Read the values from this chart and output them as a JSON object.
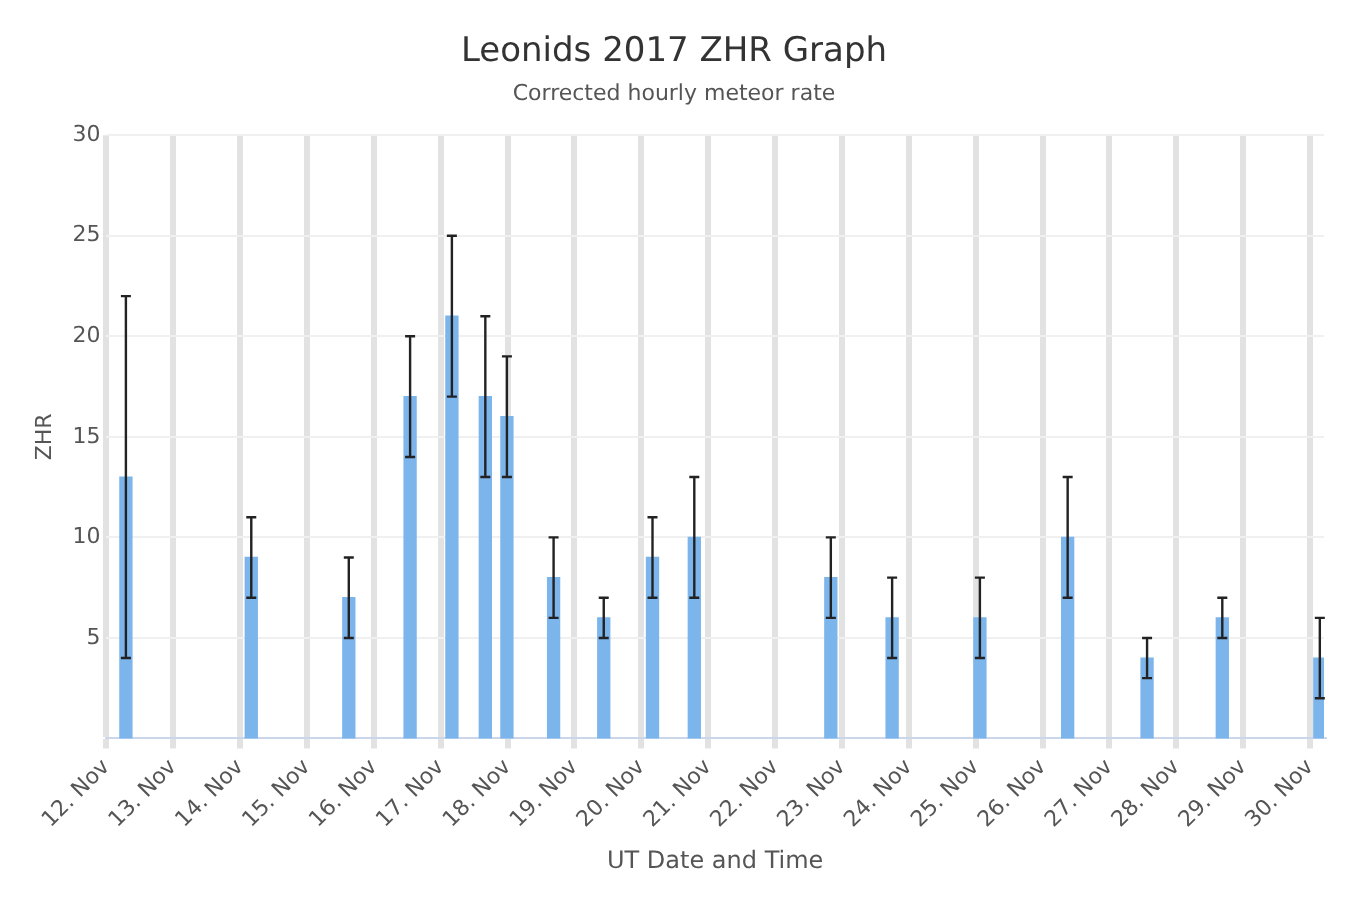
{
  "chart_data": {
    "type": "bar",
    "title": "Leonids 2017 ZHR Graph",
    "subtitle": "Corrected hourly meteor rate",
    "xlabel": "UT Date and Time",
    "ylabel": "ZHR",
    "x": [
      "2017-11-12T07:00",
      "2017-11-14T04:00",
      "2017-11-15T15:00",
      "2017-11-16T13:00",
      "2017-11-17T04:00",
      "2017-11-17T16:00",
      "2017-11-17T23:45",
      "2017-11-18T16:30",
      "2017-11-19T10:30",
      "2017-11-20T04:00",
      "2017-11-20T19:00",
      "2017-11-22T20:00",
      "2017-11-23T18:00",
      "2017-11-25T01:30",
      "2017-11-26T09:00",
      "2017-11-27T13:30",
      "2017-11-28T16:30",
      "2017-11-30T03:30"
    ],
    "values": [
      13,
      9,
      7,
      17,
      21,
      17,
      16,
      8,
      6,
      9,
      10,
      8,
      6,
      6,
      10,
      4,
      6,
      4
    ],
    "errors": [
      [
        4,
        22
      ],
      [
        7,
        11
      ],
      [
        5,
        9
      ],
      [
        14,
        20
      ],
      [
        17,
        25
      ],
      [
        13,
        21
      ],
      [
        13,
        19
      ],
      [
        6,
        10
      ],
      [
        5,
        7
      ],
      [
        7,
        11
      ],
      [
        7,
        13
      ],
      [
        6,
        10
      ],
      [
        4,
        8
      ],
      [
        4,
        8
      ],
      [
        7,
        13
      ],
      [
        3,
        5
      ],
      [
        5,
        7
      ],
      [
        2,
        6
      ]
    ],
    "color": "#7cb5ec",
    "xlim": [
      "2017-11-12",
      "2017-11-30T05:00"
    ],
    "xticks": [
      {
        "value": "2017-11-12",
        "label": "12. Nov"
      },
      {
        "value": "2017-11-13",
        "label": "13. Nov"
      },
      {
        "value": "2017-11-14",
        "label": "14. Nov"
      },
      {
        "value": "2017-11-15",
        "label": "15. Nov"
      },
      {
        "value": "2017-11-16",
        "label": "16. Nov"
      },
      {
        "value": "2017-11-17",
        "label": "17. Nov"
      },
      {
        "value": "2017-11-18",
        "label": "18. Nov"
      },
      {
        "value": "2017-11-19",
        "label": "19. Nov"
      },
      {
        "value": "2017-11-20",
        "label": "20. Nov"
      },
      {
        "value": "2017-11-21",
        "label": "21. Nov"
      },
      {
        "value": "2017-11-22",
        "label": "22. Nov"
      },
      {
        "value": "2017-11-23",
        "label": "23. Nov"
      },
      {
        "value": "2017-11-24",
        "label": "24. Nov"
      },
      {
        "value": "2017-11-25",
        "label": "25. Nov"
      },
      {
        "value": "2017-11-26",
        "label": "26. Nov"
      },
      {
        "value": "2017-11-27",
        "label": "27. Nov"
      },
      {
        "value": "2017-11-28",
        "label": "28. Nov"
      },
      {
        "value": "2017-11-29",
        "label": "29. Nov"
      },
      {
        "value": "2017-11-30",
        "label": "30. Nov"
      }
    ],
    "ylim": [
      0,
      30
    ],
    "yticks": [
      5,
      10,
      15,
      20,
      25,
      30
    ],
    "grid": true,
    "legend": false
  }
}
